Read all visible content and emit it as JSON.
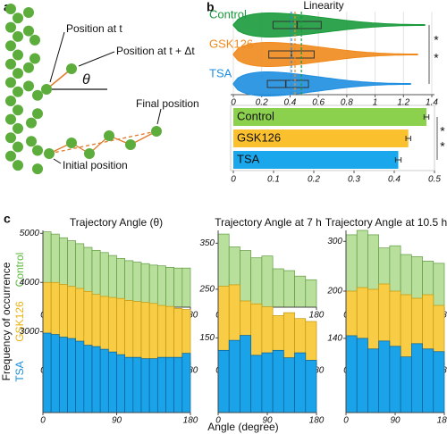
{
  "panel_labels": [
    "a",
    "b",
    "c"
  ],
  "panel_a": {
    "position_t": "Position at t",
    "position_t_dt": "Position at t + Δt",
    "theta": "θ",
    "final_position": "Final position",
    "initial_position": "Initial position"
  },
  "panel_c": {
    "column_titles": [
      "Trajectory Angle (θ)",
      "Trajectory Angle at 7 h",
      "Trajectory Angle at 10.5 h"
    ],
    "row_labels": [
      "Control",
      "GSK126",
      "TSA"
    ],
    "y_label": "Frequency of occurrence",
    "x_label": "Angle (degree)"
  },
  "chart_data": [
    {
      "type": "violin",
      "title": "Linearity",
      "categories": [
        "Control",
        "GSK126",
        "TSA"
      ],
      "colors": [
        "#1a9a3c",
        "#f08a1c",
        "#1e8ee0"
      ],
      "ranges": [
        [
          0,
          1.35
        ],
        [
          0,
          1.3
        ],
        [
          0,
          1.25
        ]
      ],
      "q1": [
        0.28,
        0.25,
        0.24
      ],
      "medians": [
        0.45,
        0.41,
        0.37
      ],
      "q3": [
        0.62,
        0.57,
        0.53
      ],
      "means": [
        0.48,
        0.435,
        0.41
      ],
      "xlim": [
        0,
        1.4
      ],
      "xticks": [
        0,
        0.2,
        0.4,
        0.6,
        0.8,
        1,
        1.2,
        1.4
      ],
      "grid": true,
      "significance": [
        "*",
        "*"
      ]
    },
    {
      "type": "bar",
      "orientation": "horizontal",
      "categories": [
        "Control",
        "GSK126",
        "TSA"
      ],
      "values": [
        0.48,
        0.435,
        0.41
      ],
      "errors": [
        0.006,
        0.006,
        0.007
      ],
      "colors": [
        "#8cd14e",
        "#fbc02d",
        "#1aa7ec"
      ],
      "xlim": [
        0,
        0.5
      ],
      "xticks": [
        0,
        0.1,
        0.2,
        0.3,
        0.4,
        0.5
      ],
      "significance": [
        "*",
        "*"
      ]
    },
    {
      "type": "histogram",
      "bins": [
        0,
        10,
        20,
        30,
        40,
        50,
        60,
        70,
        80,
        90,
        100,
        110,
        120,
        130,
        140,
        150,
        160,
        170,
        180
      ],
      "values": [
        5100,
        4950,
        4700,
        4500,
        4300,
        4050,
        3850,
        3700,
        3500,
        3300,
        3150,
        3050,
        2950,
        2850,
        2800,
        2700,
        2650,
        2650
      ],
      "color": "#b8e09c",
      "edge_color": "#5f9a40",
      "xlim": [
        0,
        180
      ],
      "xticks": [
        0,
        90,
        180
      ],
      "ylim": [
        0,
        5200
      ],
      "yticks": [
        5000
      ]
    },
    {
      "type": "histogram",
      "bins": [
        0,
        20,
        40,
        60,
        80,
        100,
        120,
        140,
        160,
        180
      ],
      "values": [
        400,
        330,
        310,
        270,
        280,
        210,
        200,
        170,
        150
      ],
      "color": "#b8e09c",
      "edge_color": "#5f9a40",
      "xlim": [
        0,
        180
      ],
      "xticks": [
        0,
        90,
        180
      ],
      "ylim": [
        0,
        420
      ],
      "yticks": [
        350
      ]
    },
    {
      "type": "histogram",
      "bins": [
        0,
        20,
        40,
        60,
        80,
        100,
        120,
        140,
        160,
        180
      ],
      "values": [
        330,
        350,
        330,
        270,
        280,
        240,
        230,
        210,
        200
      ],
      "color": "#b8e09c",
      "edge_color": "#5f9a40",
      "xlim": [
        0,
        180
      ],
      "xticks": [
        0,
        90,
        180
      ],
      "ylim": [
        0,
        350
      ],
      "yticks": [
        300
      ]
    },
    {
      "type": "histogram",
      "bins": [
        0,
        10,
        20,
        30,
        40,
        50,
        60,
        70,
        80,
        90,
        100,
        110,
        120,
        130,
        140,
        150,
        160,
        170,
        180
      ],
      "values": [
        4000,
        4000,
        3900,
        3800,
        3700,
        3550,
        3400,
        3300,
        3250,
        3200,
        3100,
        3050,
        3000,
        2950,
        2850,
        2800,
        2700,
        2650
      ],
      "color": "#f8cd45",
      "edge_color": "#c4960c",
      "xlim": [
        0,
        180
      ],
      "xticks": [
        0,
        90,
        180
      ],
      "ylim": [
        0,
        4100
      ],
      "yticks": [
        4000
      ]
    },
    {
      "type": "histogram",
      "bins": [
        0,
        20,
        40,
        60,
        80,
        100,
        120,
        140,
        160,
        180
      ],
      "values": [
        260,
        265,
        210,
        200,
        190,
        160,
        170,
        150,
        140
      ],
      "color": "#f8cd45",
      "edge_color": "#c4960c",
      "xlim": [
        0,
        180
      ],
      "xticks": [
        0,
        90,
        180
      ],
      "ylim": [
        0,
        280
      ],
      "yticks": [
        250
      ]
    },
    {
      "type": "histogram",
      "bins": [
        0,
        20,
        40,
        60,
        80,
        100,
        120,
        140,
        160,
        180
      ],
      "values": [
        200,
        210,
        205,
        220,
        200,
        190,
        180,
        190,
        160
      ],
      "color": "#f8cd45",
      "edge_color": "#c4960c",
      "xlim": [
        0,
        180
      ],
      "xticks": [
        0,
        90,
        180
      ],
      "ylim": [
        0,
        230
      ],
      "yticks": [
        200
      ]
    },
    {
      "type": "histogram",
      "bins": [
        0,
        10,
        20,
        30,
        40,
        50,
        60,
        70,
        80,
        90,
        100,
        110,
        120,
        130,
        140,
        150,
        160,
        170,
        180
      ],
      "values": [
        2950,
        2900,
        2800,
        2750,
        2650,
        2500,
        2450,
        2350,
        2250,
        2150,
        2050,
        2050,
        2000,
        2000,
        2050,
        2050,
        2050,
        2200
      ],
      "color": "#1ba3ea",
      "edge_color": "#0a5f96",
      "xlim": [
        0,
        180
      ],
      "xticks": [
        0,
        90,
        180
      ],
      "ylim": [
        0,
        3050
      ],
      "yticks": [
        3000
      ]
    },
    {
      "type": "histogram",
      "bins": [
        0,
        20,
        40,
        60,
        80,
        100,
        120,
        140,
        160,
        180
      ],
      "values": [
        125,
        145,
        155,
        115,
        120,
        125,
        110,
        120,
        105
      ],
      "color": "#1ba3ea",
      "edge_color": "#0a5f96",
      "xlim": [
        0,
        180
      ],
      "xticks": [
        0,
        90,
        180
      ],
      "ylim": [
        0,
        165
      ],
      "yticks": [
        150
      ]
    },
    {
      "type": "histogram",
      "bins": [
        0,
        20,
        40,
        60,
        80,
        100,
        120,
        140,
        160,
        180
      ],
      "values": [
        145,
        140,
        120,
        135,
        125,
        105,
        130,
        120,
        115
      ],
      "color": "#1ba3ea",
      "edge_color": "#0a5f96",
      "xlim": [
        0,
        180
      ],
      "xticks": [
        0,
        90,
        180
      ],
      "ylim": [
        0,
        155
      ],
      "yticks": [
        140
      ]
    }
  ]
}
